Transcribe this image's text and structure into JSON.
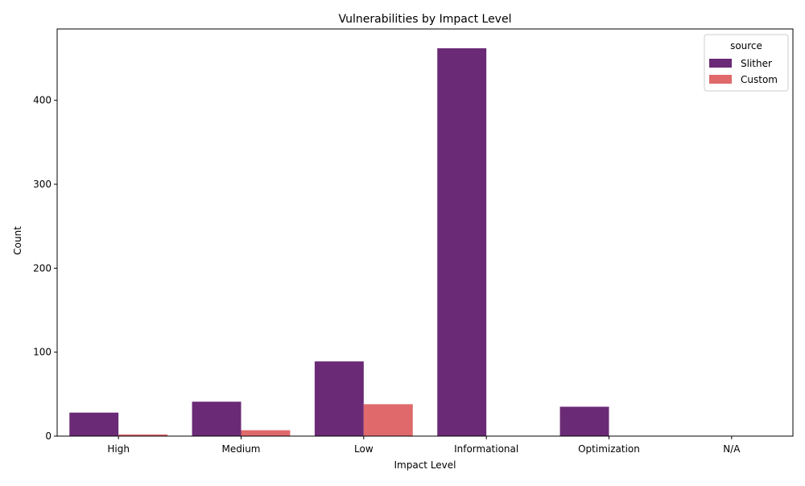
{
  "chart_data": {
    "type": "bar",
    "title": "Vulnerabilities by Impact Level",
    "xlabel": "Impact Level",
    "ylabel": "Count",
    "categories": [
      "High",
      "Medium",
      "Low",
      "Informational",
      "Optimization",
      "N/A"
    ],
    "series": [
      {
        "name": "Slither",
        "color": "#6b2a76",
        "values": [
          28,
          41,
          89,
          462,
          35,
          0
        ]
      },
      {
        "name": "Custom",
        "color": "#e0696b",
        "values": [
          2,
          7,
          38,
          0,
          0,
          0
        ]
      }
    ],
    "ylim": [
      0,
      485
    ],
    "yticks": [
      0,
      100,
      200,
      300,
      400
    ],
    "grid": false,
    "legend": {
      "title": "source",
      "placement": "top-right"
    }
  }
}
